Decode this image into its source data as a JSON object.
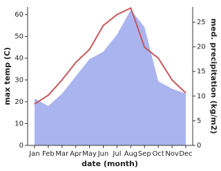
{
  "chart_data": {
    "type": "line-area",
    "categories": [
      "Jan",
      "Feb",
      "Mar",
      "Apr",
      "May",
      "Jun",
      "Jul",
      "Aug",
      "Sep",
      "Oct",
      "Nov",
      "Dec"
    ],
    "x_label": "date (month)",
    "y_label": "max temp (C)",
    "y2_label": "med. precipitation (kg/m2)",
    "ylim": [
      0,
      63.5
    ],
    "yticks": [
      0,
      10,
      20,
      30,
      40,
      50,
      60
    ],
    "y2lim": [
      0,
      28.1
    ],
    "y2ticks": [
      0,
      5,
      10,
      15,
      20,
      25
    ],
    "series": [
      {
        "name": "max temp",
        "color": "#c9545a",
        "values": [
          19,
          23,
          30,
          38,
          44,
          55,
          60,
          63,
          45,
          40,
          30,
          24
        ]
      },
      {
        "name": "med. precipitation",
        "color": "#aab4ee",
        "axis": "y2",
        "values": [
          9.5,
          8,
          10.5,
          14,
          17.5,
          19,
          22.5,
          27.5,
          24,
          13,
          11.5,
          10.5
        ]
      }
    ]
  }
}
